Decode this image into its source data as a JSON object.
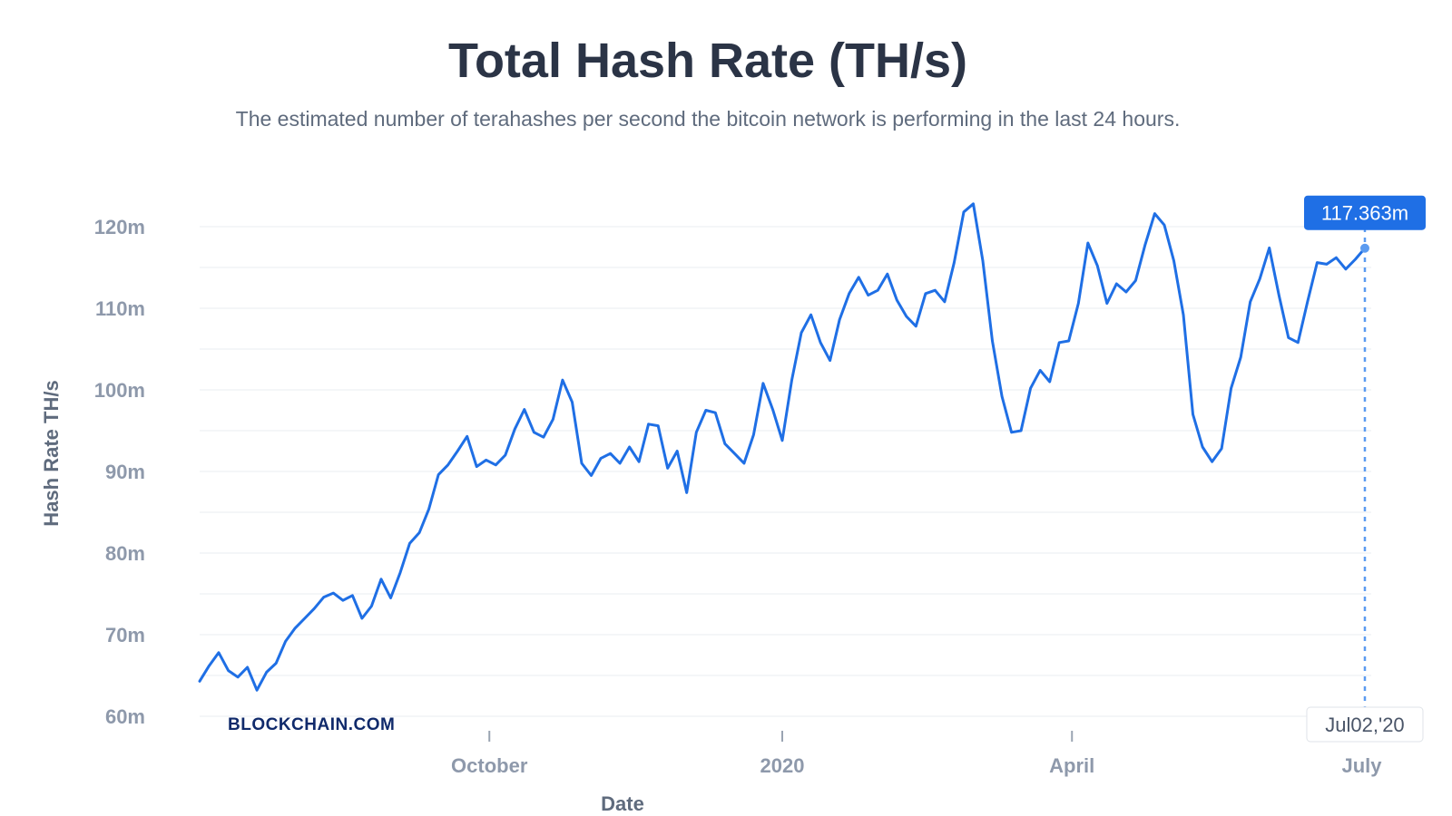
{
  "page": {
    "title": "Total Hash Rate (TH/s)",
    "subtitle": "The estimated number of terahashes per second the bitcoin network is performing in the last 24 hours.",
    "watermark": "BLOCKCHAIN.COM"
  },
  "tooltip": {
    "value_label": "117.363m",
    "date_label": "Jul02,'20"
  },
  "colors": {
    "line": "#1f6fe5",
    "tooltip_bg": "#1f6fe5",
    "grid": "#e8ecf1",
    "crosshair": "#5b9bf0"
  },
  "chart_data": {
    "type": "line",
    "title": "Total Hash Rate (TH/s)",
    "subtitle": "The estimated number of terahashes per second the bitcoin network is performing in the last 24 hours.",
    "xlabel": "Date",
    "ylabel": "Hash Rate TH/s",
    "xlim": [
      "2019-07-02",
      "2020-07-04"
    ],
    "ylim": [
      60,
      122
    ],
    "yticks": [
      60,
      70,
      80,
      90,
      100,
      110,
      120
    ],
    "yticklabels": [
      "60m",
      "70m",
      "80m",
      "90m",
      "100m",
      "110m",
      "120m"
    ],
    "xticks": [
      "2019-10-01",
      "2020-01-01",
      "2020-04-01",
      "2020-07-01"
    ],
    "xticklabels": [
      "October",
      "2020",
      "April",
      "July"
    ],
    "grid": true,
    "legend": "none",
    "highlight": {
      "x": "2020-07-02",
      "y": 117.363
    },
    "series": [
      {
        "points": [
          [
            "2019-07-02",
            64.3
          ],
          [
            "2019-07-05",
            66.2
          ],
          [
            "2019-07-08",
            67.8
          ],
          [
            "2019-07-11",
            65.6
          ],
          [
            "2019-07-14",
            64.8
          ],
          [
            "2019-07-17",
            66.0
          ],
          [
            "2019-07-20",
            63.2
          ],
          [
            "2019-07-23",
            65.4
          ],
          [
            "2019-07-26",
            66.5
          ],
          [
            "2019-07-29",
            69.2
          ],
          [
            "2019-08-01",
            70.8
          ],
          [
            "2019-08-04",
            72.0
          ],
          [
            "2019-08-07",
            73.2
          ],
          [
            "2019-08-10",
            74.6
          ],
          [
            "2019-08-13",
            75.1
          ],
          [
            "2019-08-16",
            74.2
          ],
          [
            "2019-08-19",
            74.8
          ],
          [
            "2019-08-22",
            72.0
          ],
          [
            "2019-08-25",
            73.5
          ],
          [
            "2019-08-28",
            76.8
          ],
          [
            "2019-08-31",
            74.5
          ],
          [
            "2019-09-03",
            77.6
          ],
          [
            "2019-09-06",
            81.2
          ],
          [
            "2019-09-09",
            82.5
          ],
          [
            "2019-09-12",
            85.4
          ],
          [
            "2019-09-15",
            89.6
          ],
          [
            "2019-09-18",
            90.8
          ],
          [
            "2019-09-21",
            92.5
          ],
          [
            "2019-09-24",
            94.3
          ],
          [
            "2019-09-27",
            90.6
          ],
          [
            "2019-09-30",
            91.4
          ],
          [
            "2019-10-03",
            90.8
          ],
          [
            "2019-10-06",
            92.0
          ],
          [
            "2019-10-09",
            95.2
          ],
          [
            "2019-10-12",
            97.6
          ],
          [
            "2019-10-15",
            94.8
          ],
          [
            "2019-10-18",
            94.2
          ],
          [
            "2019-10-21",
            96.4
          ],
          [
            "2019-10-24",
            101.2
          ],
          [
            "2019-10-27",
            98.5
          ],
          [
            "2019-10-30",
            91.0
          ],
          [
            "2019-11-02",
            89.5
          ],
          [
            "2019-11-05",
            91.6
          ],
          [
            "2019-11-08",
            92.2
          ],
          [
            "2019-11-11",
            91.0
          ],
          [
            "2019-11-14",
            93.0
          ],
          [
            "2019-11-17",
            91.2
          ],
          [
            "2019-11-20",
            95.8
          ],
          [
            "2019-11-23",
            95.6
          ],
          [
            "2019-11-26",
            90.4
          ],
          [
            "2019-11-29",
            92.5
          ],
          [
            "2019-12-02",
            87.4
          ],
          [
            "2019-12-05",
            94.8
          ],
          [
            "2019-12-08",
            97.5
          ],
          [
            "2019-12-11",
            97.2
          ],
          [
            "2019-12-14",
            93.4
          ],
          [
            "2019-12-17",
            92.2
          ],
          [
            "2019-12-20",
            91.0
          ],
          [
            "2019-12-23",
            94.5
          ],
          [
            "2019-12-26",
            100.8
          ],
          [
            "2019-12-29",
            97.6
          ],
          [
            "2020-01-01",
            93.8
          ],
          [
            "2020-01-04",
            101.2
          ],
          [
            "2020-01-07",
            107.0
          ],
          [
            "2020-01-10",
            109.2
          ],
          [
            "2020-01-13",
            105.8
          ],
          [
            "2020-01-16",
            103.6
          ],
          [
            "2020-01-19",
            108.6
          ],
          [
            "2020-01-22",
            111.8
          ],
          [
            "2020-01-25",
            113.8
          ],
          [
            "2020-01-28",
            111.6
          ],
          [
            "2020-01-31",
            112.2
          ],
          [
            "2020-02-03",
            114.2
          ],
          [
            "2020-02-06",
            111.0
          ],
          [
            "2020-02-09",
            109.0
          ],
          [
            "2020-02-12",
            107.8
          ],
          [
            "2020-02-15",
            111.8
          ],
          [
            "2020-02-18",
            112.2
          ],
          [
            "2020-02-21",
            110.8
          ],
          [
            "2020-02-24",
            115.6
          ],
          [
            "2020-02-27",
            121.8
          ],
          [
            "2020-03-01",
            122.8
          ],
          [
            "2020-03-04",
            115.8
          ],
          [
            "2020-03-07",
            106.0
          ],
          [
            "2020-03-10",
            99.2
          ],
          [
            "2020-03-13",
            94.8
          ],
          [
            "2020-03-16",
            95.0
          ],
          [
            "2020-03-19",
            100.2
          ],
          [
            "2020-03-22",
            102.4
          ],
          [
            "2020-03-25",
            101.0
          ],
          [
            "2020-03-28",
            105.8
          ],
          [
            "2020-03-31",
            106.0
          ],
          [
            "2020-04-03",
            110.6
          ],
          [
            "2020-04-06",
            118.0
          ],
          [
            "2020-04-09",
            115.2
          ],
          [
            "2020-04-12",
            110.6
          ],
          [
            "2020-04-15",
            113.0
          ],
          [
            "2020-04-18",
            112.0
          ],
          [
            "2020-04-21",
            113.4
          ],
          [
            "2020-04-24",
            117.8
          ],
          [
            "2020-04-27",
            121.6
          ],
          [
            "2020-04-30",
            120.2
          ],
          [
            "2020-05-03",
            115.8
          ],
          [
            "2020-05-06",
            109.2
          ],
          [
            "2020-05-09",
            97.0
          ],
          [
            "2020-05-12",
            93.0
          ],
          [
            "2020-05-15",
            91.2
          ],
          [
            "2020-05-18",
            92.8
          ],
          [
            "2020-05-21",
            100.2
          ],
          [
            "2020-05-24",
            104.0
          ],
          [
            "2020-05-27",
            110.8
          ],
          [
            "2020-05-30",
            113.6
          ],
          [
            "2020-06-02",
            117.4
          ],
          [
            "2020-06-05",
            111.6
          ],
          [
            "2020-06-08",
            106.4
          ],
          [
            "2020-06-11",
            105.8
          ],
          [
            "2020-06-14",
            110.8
          ],
          [
            "2020-06-17",
            115.6
          ],
          [
            "2020-06-20",
            115.4
          ],
          [
            "2020-06-23",
            116.2
          ],
          [
            "2020-06-26",
            114.8
          ],
          [
            "2020-06-29",
            116.0
          ],
          [
            "2020-07-02",
            117.363
          ]
        ]
      }
    ]
  }
}
